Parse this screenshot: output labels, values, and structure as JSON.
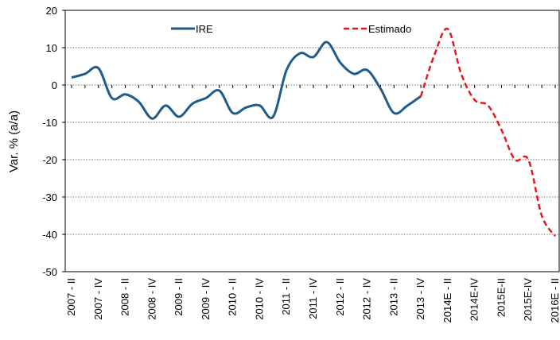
{
  "chart_data": {
    "type": "line",
    "y_label": "Var. % (a/a)",
    "categories": [
      "2007 - II",
      null,
      "2007 - IV",
      null,
      "2008 - II",
      null,
      "2008 - IV",
      null,
      "2009 - II",
      null,
      "2009 - IV",
      null,
      "2010 - II",
      null,
      "2010 - IV",
      null,
      "2011 - II",
      null,
      "2011 - IV",
      null,
      "2012 - II",
      null,
      "2012 - IV",
      null,
      "2013 - II",
      null,
      "2013 - IV",
      null,
      "2014E - II",
      null,
      "2014E-IV",
      null,
      "2015E-II",
      null,
      "2015E-IV",
      null,
      "2016E - II"
    ],
    "series": [
      {
        "name": "IRE",
        "color": "#1f5c8b",
        "dash": false,
        "values": [
          2,
          3,
          4.5,
          -3.5,
          -2.5,
          -4.5,
          -9,
          -5.5,
          -8.5,
          -5,
          -3.5,
          -1.5,
          -7.5,
          -6,
          -5.5,
          -8.5,
          4,
          8.5,
          7.5,
          11.5,
          6,
          3,
          4,
          -1,
          -7.5,
          -5.5,
          -3,
          null,
          null,
          null,
          null,
          null,
          null,
          null,
          null,
          null,
          null
        ]
      },
      {
        "name": "Estimado",
        "color": "#e31a1c",
        "dash": true,
        "values": [
          null,
          null,
          null,
          null,
          null,
          null,
          null,
          null,
          null,
          null,
          null,
          null,
          null,
          null,
          null,
          null,
          null,
          null,
          null,
          null,
          null,
          null,
          null,
          null,
          null,
          null,
          -3,
          8,
          15,
          3,
          -4,
          -5.5,
          -12,
          -20,
          -20,
          -35,
          -40.5
        ]
      }
    ],
    "ylim": [
      -50,
      20
    ],
    "yticks": [
      -50,
      -40,
      -30,
      -20,
      -10,
      0,
      10,
      20
    ],
    "grid": true,
    "legend": "top"
  }
}
